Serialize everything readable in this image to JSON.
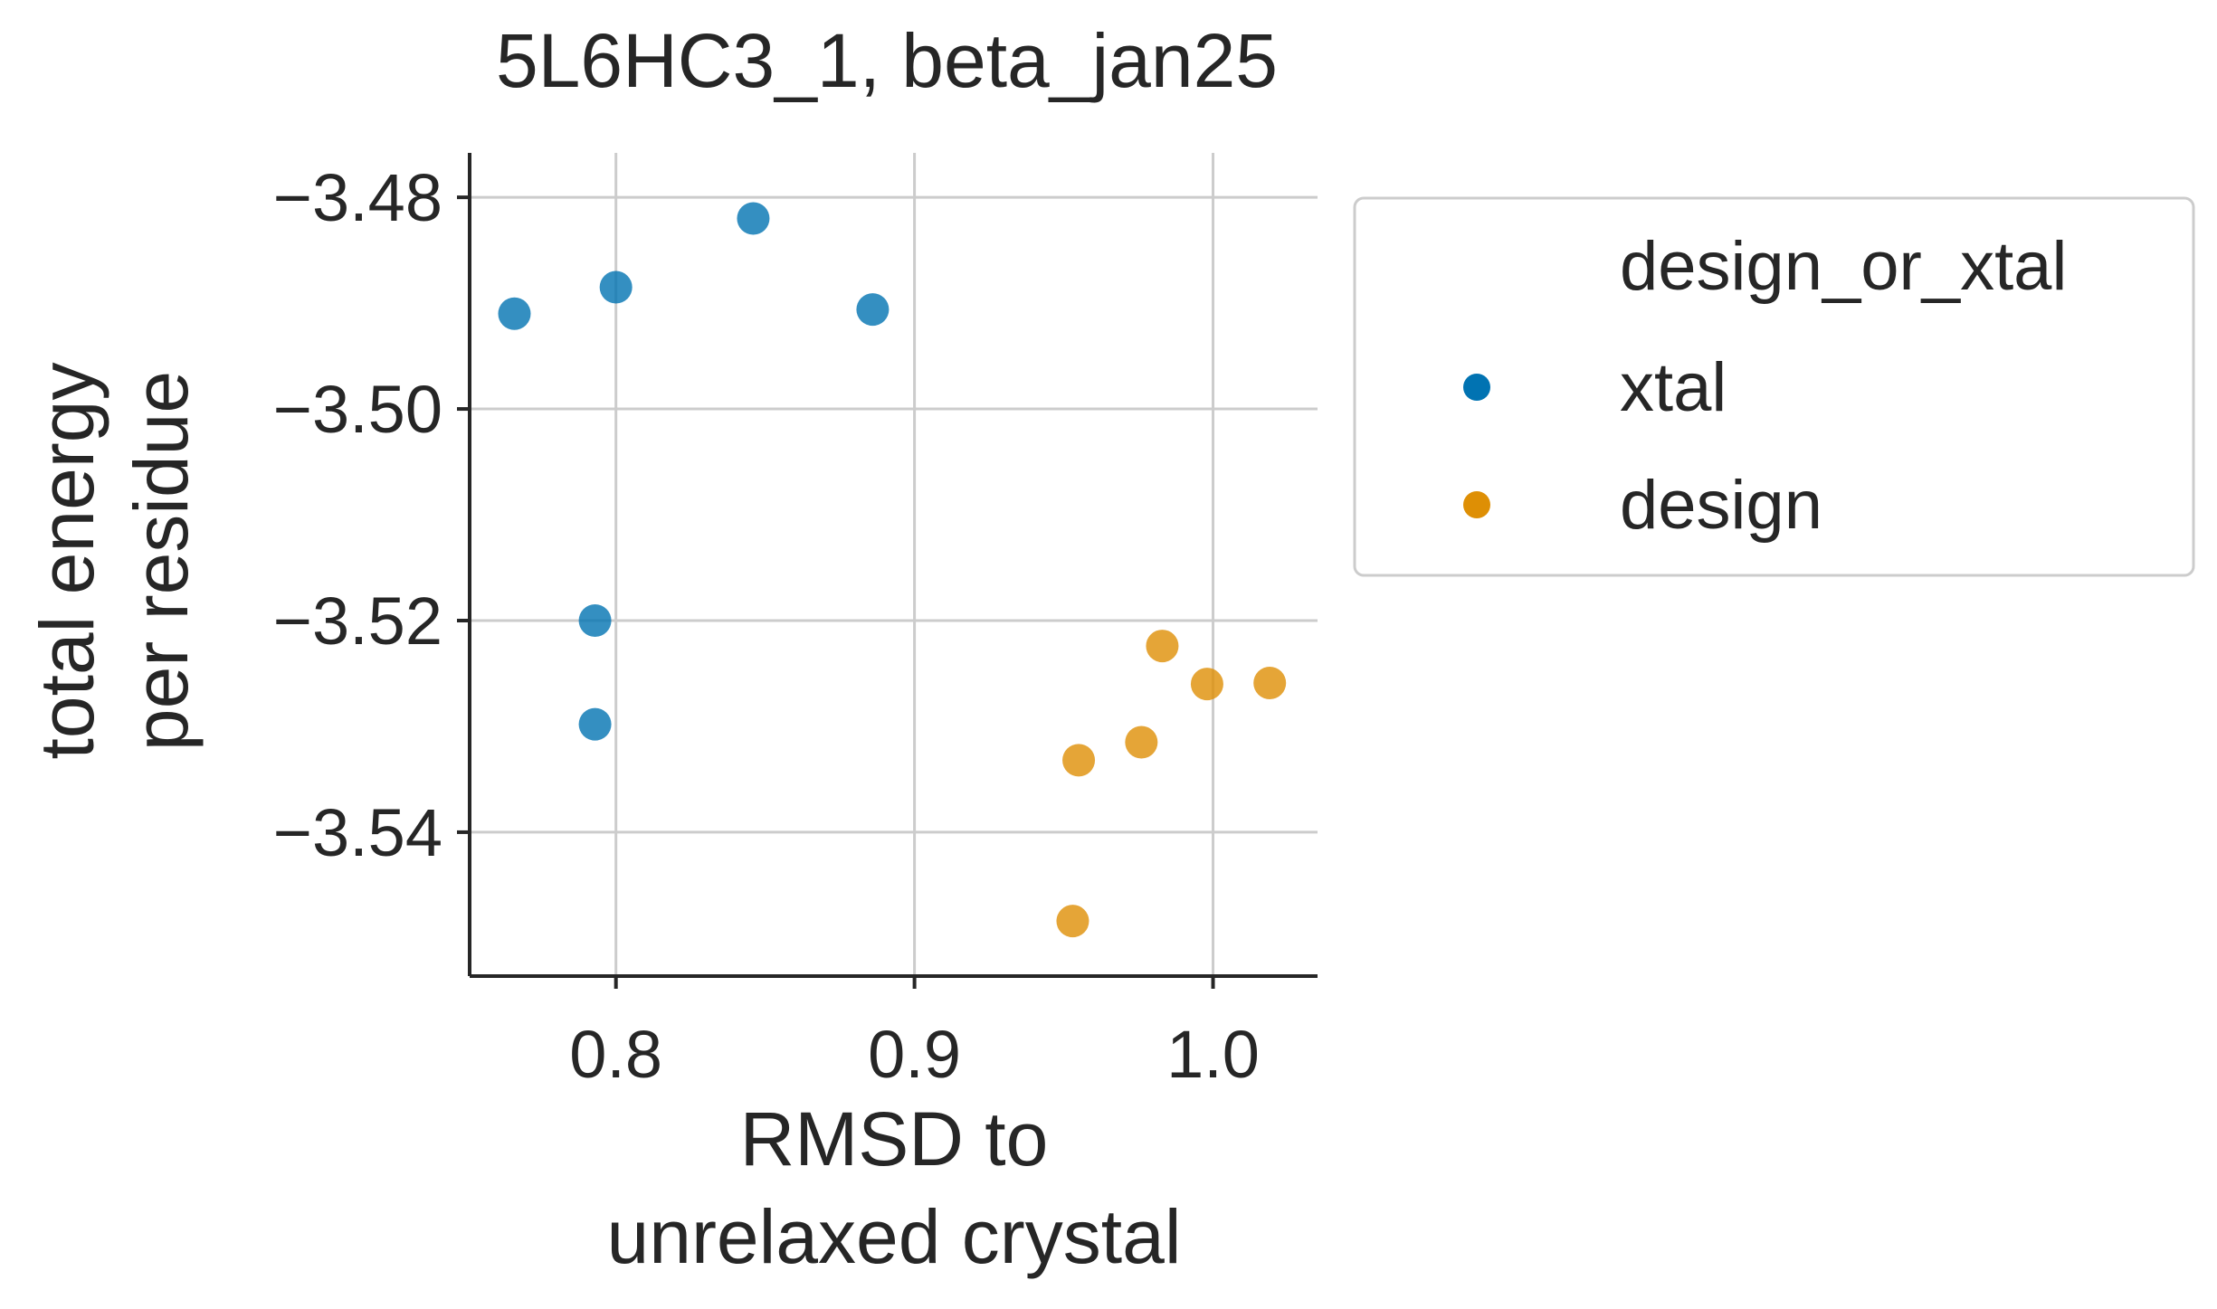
{
  "chart_data": {
    "type": "scatter",
    "title": "5L6HC3_1, beta_jan25",
    "xlabel": [
      "RMSD to",
      "unrelaxed crystal"
    ],
    "ylabel": [
      "total energy",
      "per residue"
    ],
    "xlim": [
      0.751,
      1.035
    ],
    "ylim": [
      -3.5536,
      -3.4758
    ],
    "xticks": [
      0.8,
      0.9,
      1.0
    ],
    "xtick_labels": [
      "0.8",
      "0.9",
      "1.0"
    ],
    "yticks": [
      -3.48,
      -3.5,
      -3.52,
      -3.54
    ],
    "ytick_labels": [
      "−3.48",
      "−3.50",
      "−3.52",
      "−3.54"
    ],
    "grid": true,
    "legend": {
      "title": "design_or_xtal",
      "placement": "outside-right"
    },
    "series": [
      {
        "name": "xtal",
        "color": "#0173b2",
        "points": [
          {
            "x": 0.766,
            "y": -3.491
          },
          {
            "x": 0.8,
            "y": -3.4885
          },
          {
            "x": 0.846,
            "y": -3.482
          },
          {
            "x": 0.886,
            "y": -3.4906
          },
          {
            "x": 0.793,
            "y": -3.52
          },
          {
            "x": 0.793,
            "y": -3.5298
          }
        ]
      },
      {
        "name": "design",
        "color": "#de8f05",
        "points": [
          {
            "x": 0.983,
            "y": -3.5224
          },
          {
            "x": 0.998,
            "y": -3.526
          },
          {
            "x": 1.019,
            "y": -3.5259
          },
          {
            "x": 0.955,
            "y": -3.5332
          },
          {
            "x": 0.976,
            "y": -3.5315
          },
          {
            "x": 0.953,
            "y": -3.5484
          }
        ]
      }
    ]
  }
}
